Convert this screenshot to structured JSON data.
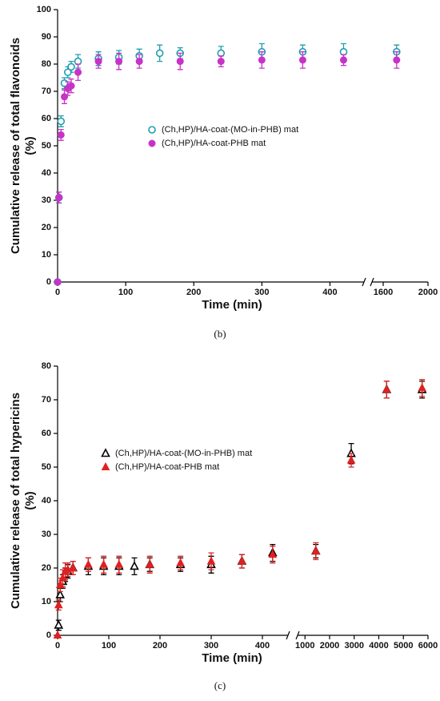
{
  "chart_data": [
    {
      "type": "scatter",
      "ylabel": [
        "Cumulative release of total flavonoids",
        "(%)"
      ],
      "xlabel": "Time (min)",
      "caption": "(b)",
      "ylim": [
        0,
        100
      ],
      "yticks": [
        0,
        10,
        20,
        30,
        40,
        50,
        60,
        70,
        80,
        90,
        100
      ],
      "xlim": [
        [
          0,
          450
        ],
        [
          1500,
          2000
        ]
      ],
      "xticks": [
        [
          0,
          100,
          200,
          300,
          400
        ],
        [
          1600,
          2000
        ]
      ],
      "series": [
        {
          "name": "(Ch,HP)/HA-coat-(MO-in-PHB) mat",
          "color": "#1f9fae",
          "marker": "open-circle",
          "x": [
            0,
            2,
            5,
            10,
            15,
            20,
            30,
            60,
            90,
            120,
            150,
            180,
            240,
            300,
            360,
            420,
            1720
          ],
          "values": [
            0,
            31,
            59,
            73,
            77,
            79,
            81,
            82,
            82.5,
            83,
            84,
            84,
            84,
            84.5,
            84.5,
            84.5,
            84.5
          ],
          "errors": [
            0,
            2,
            2,
            2,
            2,
            2,
            2.5,
            2.5,
            2.5,
            2.5,
            3,
            2,
            2.5,
            3,
            2.5,
            3,
            2.5
          ]
        },
        {
          "name": "(Ch,HP)/HA-coat-PHB mat",
          "color": "#c832c8",
          "marker": "circle",
          "x": [
            0,
            2,
            5,
            10,
            15,
            20,
            30,
            60,
            90,
            120,
            180,
            240,
            300,
            360,
            420,
            1720
          ],
          "values": [
            0,
            31,
            54,
            68,
            71,
            72,
            77,
            81,
            81,
            81,
            81,
            81,
            81.5,
            81.5,
            81.5,
            81.5
          ],
          "errors": [
            0,
            2,
            2,
            2.5,
            2.5,
            2.5,
            3,
            2.5,
            3,
            2.5,
            3,
            2,
            3,
            3,
            2,
            3
          ]
        }
      ]
    },
    {
      "type": "scatter",
      "ylabel": [
        "Cumulative release of total hypericins",
        "(%)"
      ],
      "xlabel": "Time (min)",
      "caption": "(c)",
      "ylim": [
        0,
        80
      ],
      "yticks": [
        0,
        10,
        20,
        30,
        40,
        50,
        60,
        70,
        80
      ],
      "xlim": [
        [
          0,
          450
        ],
        [
          700,
          6000
        ]
      ],
      "xticks": [
        [
          0,
          100,
          200,
          300,
          400
        ],
        [
          1000,
          2000,
          3000,
          4000,
          5000,
          6000
        ]
      ],
      "series": [
        {
          "name": "(Ch,HP)/HA-coat-(MO-in-PHB) mat",
          "color": "#000000",
          "marker": "open-triangle",
          "x": [
            2,
            5,
            10,
            15,
            20,
            30,
            60,
            90,
            120,
            150,
            180,
            240,
            300,
            360,
            420,
            1440,
            2880,
            4320,
            5760
          ],
          "values": [
            3,
            12,
            16,
            18,
            19,
            20,
            20.5,
            20.5,
            20.5,
            20.5,
            21,
            21,
            21,
            22,
            24.5,
            25,
            54,
            73,
            73
          ],
          "errors": [
            1.5,
            2,
            2,
            2,
            2,
            2,
            2.5,
            2.5,
            2.5,
            2.5,
            2,
            2,
            2.5,
            2,
            2.5,
            2,
            3,
            2.5,
            2.5
          ]
        },
        {
          "name": "(Ch,HP)/HA-coat-PHB mat",
          "color": "#e02020",
          "marker": "triangle",
          "x": [
            0,
            2,
            5,
            10,
            15,
            20,
            30,
            60,
            90,
            120,
            180,
            240,
            300,
            360,
            420,
            1440,
            2880,
            4320,
            5760
          ],
          "values": [
            0,
            9,
            15,
            17,
            19,
            19.5,
            20,
            21,
            21,
            21,
            21,
            21.5,
            22,
            22,
            24,
            25,
            52,
            73,
            73.5
          ],
          "errors": [
            0,
            1.5,
            2,
            2.5,
            2.5,
            2,
            2,
            2,
            2.5,
            2.5,
            2.5,
            2,
            2.5,
            2,
            2.5,
            2.5,
            2,
            2.5,
            2.5
          ]
        }
      ]
    }
  ]
}
